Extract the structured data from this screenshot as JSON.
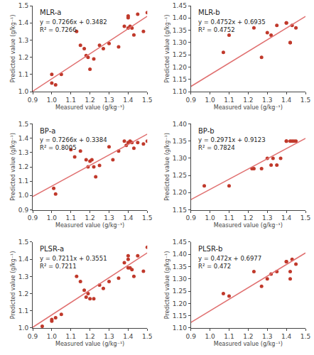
{
  "chart_data": [
    {
      "type": "scatter",
      "title": "MLR-a",
      "xlabel": "Measured value (g/kg⁻¹)",
      "ylabel": "Predicted value (g/kg⁻¹)",
      "annotations": [
        "y = 0.7266x + 0.3482",
        "R² = 0.7266"
      ],
      "xlim": [
        0.9,
        1.5
      ],
      "ylim": [
        1.0,
        1.5
      ],
      "xticks": [
        0.9,
        {
          "value": 1.0,
          "label": "1.0"
        },
        1.1,
        1.2,
        1.3,
        1.4,
        1.5
      ],
      "yticks": [
        {
          "value": 1.0,
          "label": "1.0"
        },
        1.1,
        1.2,
        1.3,
        1.4,
        1.5
      ],
      "grid": false,
      "series": [
        {
          "type": "scatter",
          "color": "#c0392b",
          "x": [
            1.0,
            1.0,
            1.02,
            1.05,
            1.13,
            1.15,
            1.17,
            1.18,
            1.19,
            1.2,
            1.22,
            1.25,
            1.27,
            1.3,
            1.35,
            1.38,
            1.4,
            1.4,
            1.4,
            1.41,
            1.42,
            1.43,
            1.45,
            1.48,
            1.5
          ],
          "values": [
            1.1,
            1.05,
            1.04,
            1.1,
            1.35,
            1.27,
            1.25,
            1.21,
            1.2,
            1.13,
            1.19,
            1.27,
            1.25,
            1.28,
            1.26,
            1.38,
            1.37,
            1.43,
            1.44,
            1.38,
            1.37,
            1.33,
            1.45,
            1.35,
            1.46
          ]
        },
        {
          "type": "line",
          "color": "#e07070",
          "x": [
            0.9,
            1.5
          ],
          "values": [
            1.00214,
            1.4381
          ]
        }
      ]
    },
    {
      "type": "scatter",
      "title": "MLR-b",
      "xlabel": "Measured value (g/kg⁻¹)",
      "ylabel": "Predicted value (g/kg⁻¹)",
      "annotations": [
        "y = 0.4752x + 0.6935",
        "R² = 0.4752"
      ],
      "xlim": [
        0.9,
        1.5
      ],
      "ylim": [
        1.1,
        1.45
      ],
      "xticks": [
        0.9,
        {
          "value": 1.0,
          "label": "1.0"
        },
        1.1,
        1.2,
        1.3,
        1.4,
        1.5
      ],
      "yticks": [
        {
          "value": 1.1,
          "label": "1.10"
        },
        1.15,
        {
          "value": 1.2,
          "label": "1.20"
        },
        1.25,
        {
          "value": 1.3,
          "label": "1.30"
        },
        1.35,
        {
          "value": 1.4,
          "label": "1.40"
        },
        1.45
      ],
      "grid": false,
      "series": [
        {
          "type": "scatter",
          "color": "#c0392b",
          "x": [
            1.07,
            1.1,
            1.23,
            1.27,
            1.3,
            1.32,
            1.35,
            1.4,
            1.4,
            1.42,
            1.42,
            1.43,
            1.45
          ],
          "values": [
            1.26,
            1.33,
            1.36,
            1.24,
            1.34,
            1.33,
            1.37,
            1.38,
            1.38,
            1.3,
            1.3,
            1.37,
            1.36
          ]
        },
        {
          "type": "line",
          "color": "#e07070",
          "x": [
            0.9,
            1.5
          ],
          "values": [
            1.12118,
            1.4063
          ]
        }
      ]
    },
    {
      "type": "scatter",
      "title": "BP-a",
      "xlabel": "Measured value (g/kg⁻¹)",
      "ylabel": "Predicted value (g/kg⁻¹)",
      "annotations": [
        "y = 0.7266x + 0.3384",
        "R² = 0.8005"
      ],
      "xlim": [
        0.9,
        1.5
      ],
      "ylim": [
        0.9,
        1.5
      ],
      "xticks": [
        0.9,
        {
          "value": 1.0,
          "label": "1.0"
        },
        1.1,
        1.2,
        1.3,
        1.4,
        1.5
      ],
      "yticks": [
        0.9,
        {
          "value": 1.0,
          "label": "1.0"
        },
        1.1,
        1.2,
        1.3,
        1.4,
        1.5
      ],
      "grid": false,
      "series": [
        {
          "type": "scatter",
          "color": "#c0392b",
          "x": [
            1.01,
            1.02,
            1.1,
            1.12,
            1.15,
            1.18,
            1.19,
            1.2,
            1.21,
            1.22,
            1.23,
            1.25,
            1.3,
            1.32,
            1.35,
            1.38,
            1.39,
            1.4,
            1.41,
            1.42,
            1.43,
            1.45,
            1.48,
            1.5
          ],
          "values": [
            1.05,
            1.01,
            1.32,
            1.27,
            1.31,
            1.25,
            1.2,
            1.24,
            1.25,
            1.2,
            1.13,
            1.21,
            1.34,
            1.25,
            1.31,
            1.38,
            1.35,
            1.37,
            1.38,
            1.37,
            1.33,
            1.37,
            1.36,
            1.38
          ]
        },
        {
          "type": "line",
          "color": "#e07070",
          "x": [
            0.9,
            1.5
          ],
          "values": [
            0.99234,
            1.4283
          ]
        }
      ]
    },
    {
      "type": "scatter",
      "title": "BP-b",
      "xlabel": "Measured value (g/kg⁻¹)",
      "ylabel": "Predicted value (g/kg⁻¹)",
      "annotations": [
        "y = 0.2971x + 0.9123",
        "R² = 0.7824"
      ],
      "xlim": [
        0.9,
        1.5
      ],
      "ylim": [
        1.15,
        1.4
      ],
      "xticks": [
        0.9,
        {
          "value": 1.0,
          "label": "1.0"
        },
        1.1,
        1.2,
        1.3,
        1.4,
        1.5
      ],
      "yticks": [
        1.15,
        {
          "value": 1.2,
          "label": "1.20"
        },
        1.25,
        {
          "value": 1.3,
          "label": "1.30"
        },
        1.35,
        {
          "value": 1.4,
          "label": "1.40"
        }
      ],
      "grid": false,
      "series": [
        {
          "type": "scatter",
          "color": "#c0392b",
          "x": [
            0.97,
            1.1,
            1.22,
            1.23,
            1.27,
            1.3,
            1.32,
            1.33,
            1.35,
            1.37,
            1.4,
            1.4,
            1.42,
            1.43,
            1.44,
            1.45
          ],
          "values": [
            1.22,
            1.22,
            1.27,
            1.27,
            1.27,
            1.3,
            1.28,
            1.3,
            1.28,
            1.3,
            1.35,
            1.35,
            1.35,
            1.35,
            1.35,
            1.35
          ]
        },
        {
          "type": "line",
          "color": "#e07070",
          "x": [
            0.9,
            1.5
          ],
          "values": [
            1.17969,
            1.35795
          ]
        }
      ]
    },
    {
      "type": "scatter",
      "title": "PLSR-a",
      "xlabel": "Measured value (g/kg⁻¹)",
      "ylabel": "Predicted value (g/kg⁻¹)",
      "annotations": [
        "y = 0.7211x + 0.3551",
        "R² = 0.7211"
      ],
      "xlim": [
        0.9,
        1.5
      ],
      "ylim": [
        1.0,
        1.5
      ],
      "xticks": [
        0.9,
        {
          "value": 1.0,
          "label": "1.0"
        },
        1.1,
        1.2,
        1.3,
        1.4,
        1.5
      ],
      "yticks": [
        {
          "value": 1.0,
          "label": "1.0"
        },
        1.1,
        1.2,
        1.3,
        1.4,
        1.5
      ],
      "grid": false,
      "series": [
        {
          "type": "scatter",
          "color": "#c0392b",
          "x": [
            0.95,
            1.0,
            1.0,
            1.02,
            1.05,
            1.13,
            1.15,
            1.17,
            1.18,
            1.19,
            1.2,
            1.22,
            1.25,
            1.27,
            1.3,
            1.35,
            1.38,
            1.4,
            1.4,
            1.4,
            1.41,
            1.42,
            1.43,
            1.45,
            1.48,
            1.5
          ],
          "values": [
            1.01,
            1.05,
            1.04,
            1.06,
            1.08,
            1.3,
            1.27,
            1.22,
            1.18,
            1.2,
            1.17,
            1.17,
            1.25,
            1.23,
            1.27,
            1.29,
            1.38,
            1.35,
            1.4,
            1.42,
            1.35,
            1.34,
            1.3,
            1.42,
            1.33,
            1.47
          ]
        },
        {
          "type": "line",
          "color": "#e07070",
          "x": [
            0.9,
            1.5
          ],
          "values": [
            1.00409,
            1.43675
          ]
        }
      ]
    },
    {
      "type": "scatter",
      "title": "PLSR-b",
      "xlabel": "Measured value (g/kg⁻¹)",
      "ylabel": "Predicted value (g/kg⁻¹)",
      "annotations": [
        "y = 0.472x + 0.6977",
        "R² = 0.472"
      ],
      "xlim": [
        0.9,
        1.5
      ],
      "ylim": [
        1.1,
        1.45
      ],
      "xticks": [
        0.9,
        {
          "value": 1.0,
          "label": "1.0"
        },
        1.1,
        1.2,
        1.3,
        1.4,
        1.5
      ],
      "yticks": [
        {
          "value": 1.1,
          "label": "1.10"
        },
        1.15,
        {
          "value": 1.2,
          "label": "1.20"
        },
        1.25,
        {
          "value": 1.3,
          "label": "1.30"
        },
        1.35,
        {
          "value": 1.4,
          "label": "1.40"
        },
        1.45
      ],
      "grid": false,
      "series": [
        {
          "type": "scatter",
          "color": "#c0392b",
          "x": [
            1.07,
            1.1,
            1.23,
            1.27,
            1.3,
            1.32,
            1.35,
            1.4,
            1.4,
            1.42,
            1.42,
            1.43,
            1.45
          ],
          "values": [
            1.24,
            1.23,
            1.33,
            1.27,
            1.3,
            1.32,
            1.33,
            1.37,
            1.37,
            1.3,
            1.33,
            1.38,
            1.36
          ]
        },
        {
          "type": "line",
          "color": "#e07070",
          "x": [
            0.9,
            1.5
          ],
          "values": [
            1.1225,
            1.4057
          ]
        }
      ]
    }
  ]
}
